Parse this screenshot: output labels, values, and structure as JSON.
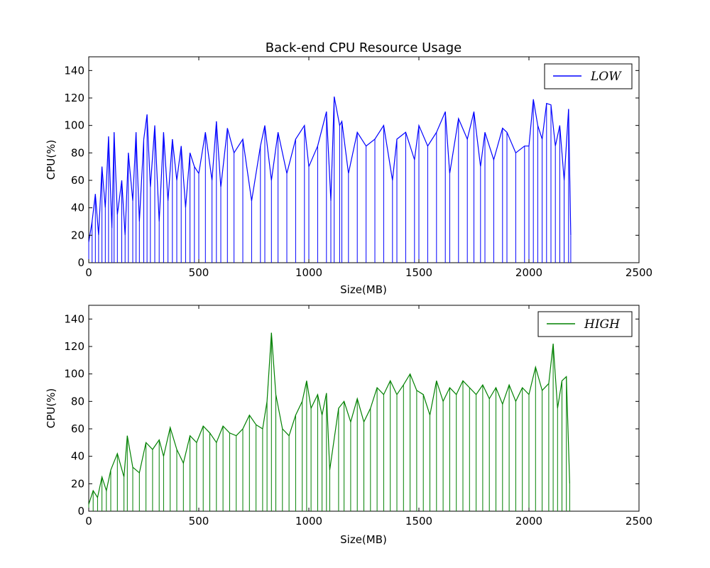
{
  "chart_data": [
    {
      "type": "line",
      "title": "Back-end CPU Resource Usage",
      "xlabel": "Size(MB)",
      "ylabel": "CPU(%)",
      "xlim": [
        0,
        2500
      ],
      "ylim": [
        0,
        150
      ],
      "xticks": [
        0,
        500,
        1000,
        1500,
        2000,
        2500
      ],
      "yticks": [
        0,
        20,
        40,
        60,
        80,
        100,
        120,
        140
      ],
      "grid": false,
      "legend": "top-right",
      "series": [
        {
          "name": "LOW",
          "color": "#0000ff",
          "x": [
            0,
            15,
            30,
            45,
            60,
            75,
            90,
            105,
            115,
            130,
            150,
            165,
            180,
            200,
            215,
            230,
            250,
            265,
            280,
            300,
            320,
            340,
            360,
            380,
            400,
            420,
            440,
            460,
            480,
            500,
            530,
            560,
            580,
            600,
            630,
            660,
            700,
            740,
            780,
            800,
            830,
            860,
            900,
            940,
            980,
            1000,
            1040,
            1080,
            1100,
            1115,
            1140,
            1150,
            1180,
            1220,
            1260,
            1300,
            1340,
            1380,
            1400,
            1440,
            1480,
            1500,
            1540,
            1580,
            1620,
            1640,
            1680,
            1720,
            1750,
            1780,
            1800,
            1840,
            1880,
            1900,
            1940,
            1980,
            2000,
            2020,
            2040,
            2060,
            2080,
            2100,
            2120,
            2140,
            2160,
            2180,
            2190
          ],
          "y": [
            15,
            30,
            50,
            20,
            70,
            40,
            92,
            25,
            95,
            35,
            60,
            20,
            80,
            45,
            95,
            30,
            90,
            108,
            55,
            100,
            30,
            95,
            45,
            90,
            60,
            85,
            40,
            80,
            70,
            65,
            95,
            60,
            103,
            55,
            98,
            80,
            90,
            45,
            85,
            100,
            60,
            95,
            65,
            90,
            100,
            70,
            85,
            110,
            45,
            121,
            100,
            103,
            65,
            95,
            85,
            90,
            100,
            60,
            90,
            95,
            75,
            100,
            85,
            95,
            110,
            65,
            105,
            90,
            110,
            70,
            95,
            75,
            98,
            95,
            80,
            85,
            85,
            119,
            100,
            90,
            116,
            115,
            85,
            100,
            60,
            112,
            20
          ]
        },
        {
          "name": "HIGH",
          "color": "#008000",
          "x": [
            0,
            20,
            40,
            60,
            80,
            100,
            130,
            160,
            175,
            200,
            230,
            260,
            290,
            320,
            340,
            370,
            400,
            430,
            460,
            490,
            520,
            550,
            580,
            610,
            640,
            670,
            700,
            730,
            760,
            790,
            810,
            830,
            850,
            880,
            910,
            940,
            970,
            990,
            1010,
            1040,
            1060,
            1080,
            1095,
            1135,
            1160,
            1190,
            1220,
            1250,
            1280,
            1310,
            1340,
            1370,
            1400,
            1430,
            1460,
            1490,
            1520,
            1550,
            1580,
            1610,
            1640,
            1670,
            1700,
            1730,
            1760,
            1790,
            1820,
            1850,
            1880,
            1910,
            1940,
            1970,
            2000,
            2030,
            2060,
            2090,
            2110,
            2130,
            2150,
            2170,
            2185
          ],
          "y": [
            5,
            15,
            10,
            25,
            15,
            30,
            42,
            25,
            55,
            32,
            28,
            50,
            45,
            52,
            40,
            61,
            45,
            35,
            55,
            50,
            62,
            57,
            50,
            62,
            57,
            55,
            60,
            70,
            63,
            60,
            80,
            130,
            85,
            60,
            55,
            70,
            80,
            95,
            75,
            85,
            70,
            86,
            30,
            75,
            80,
            65,
            82,
            65,
            75,
            90,
            85,
            95,
            85,
            92,
            100,
            88,
            85,
            70,
            95,
            80,
            90,
            85,
            95,
            90,
            85,
            92,
            82,
            90,
            78,
            92,
            80,
            90,
            85,
            105,
            88,
            93,
            122,
            75,
            95,
            98,
            20
          ]
        }
      ]
    }
  ]
}
